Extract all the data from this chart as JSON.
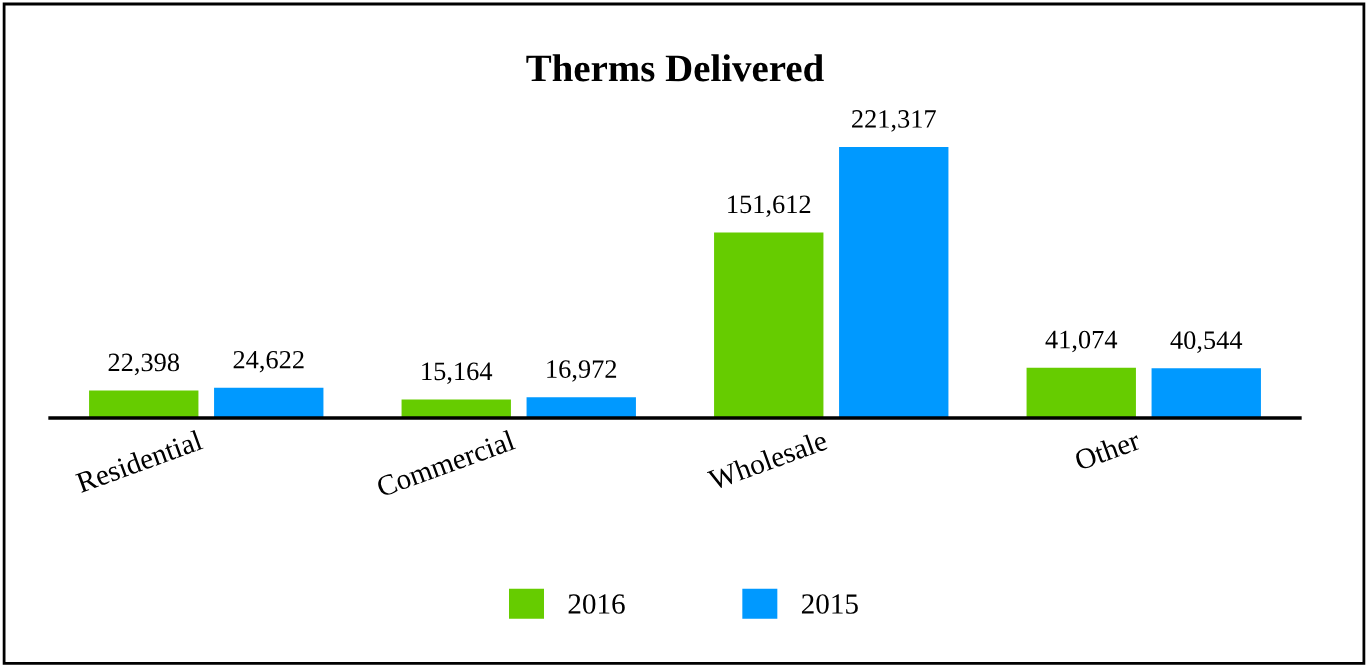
{
  "chart_data": {
    "type": "bar",
    "title": "Therms Delivered",
    "categories": [
      "Residential",
      "Commercial",
      "Wholesale",
      "Other"
    ],
    "series": [
      {
        "name": "2016",
        "color": "#66cc00",
        "values": [
          22398,
          15164,
          151612,
          41074
        ],
        "value_labels": [
          "22,398",
          "15,164",
          "151,612",
          "41,074"
        ]
      },
      {
        "name": "2015",
        "color": "#0099ff",
        "values": [
          24622,
          16972,
          221317,
          40544
        ],
        "value_labels": [
          "24,622",
          "16,972",
          "221,317",
          "40,544"
        ]
      }
    ],
    "legend": "bottom",
    "grid": false
  }
}
